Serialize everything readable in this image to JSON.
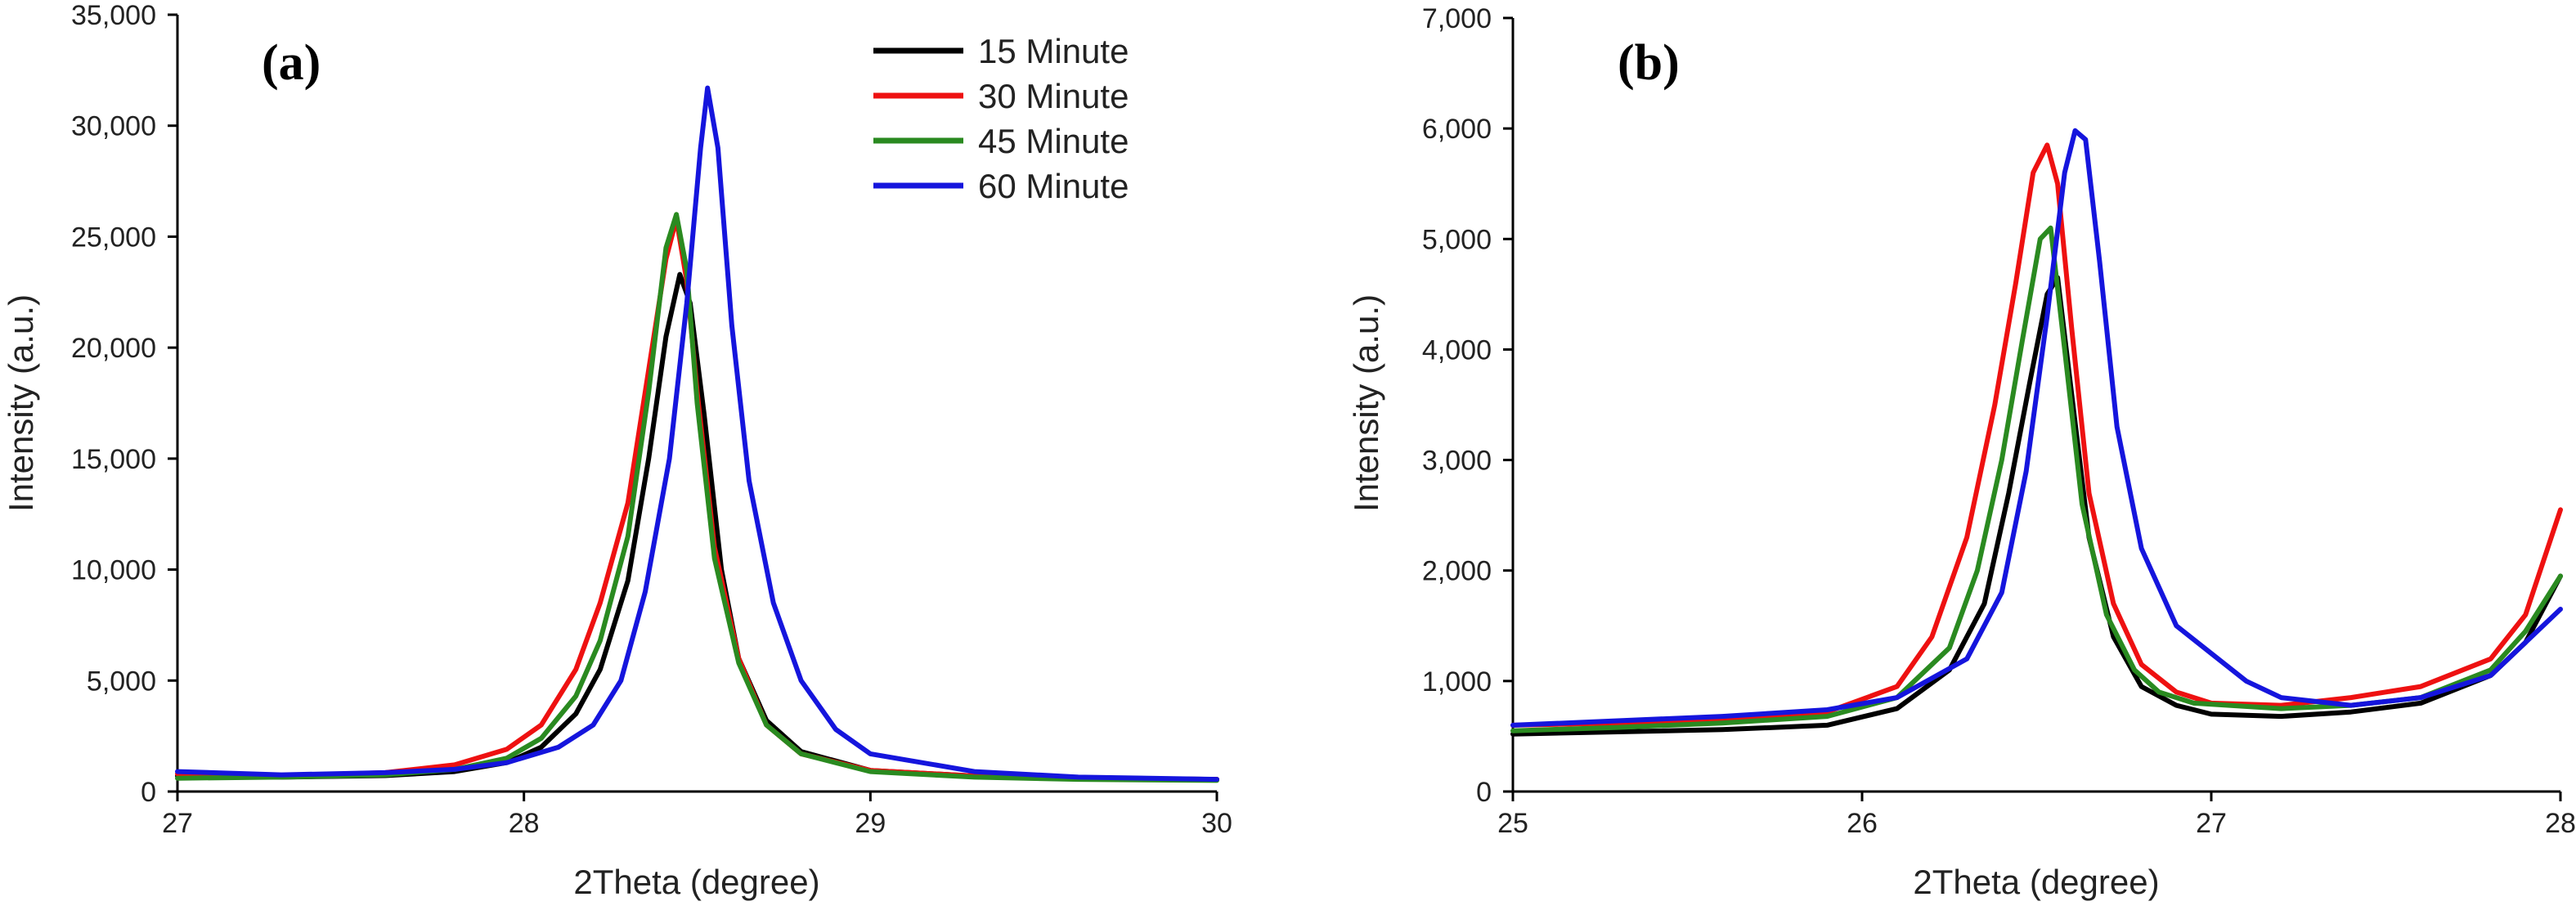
{
  "chart_data": [
    {
      "type": "line",
      "panel_label": "(a)",
      "xlabel": "2Theta (degree)",
      "ylabel": "Intensity (a.u.)",
      "xlim": [
        27,
        30
      ],
      "ylim": [
        0,
        35000
      ],
      "x_ticks": [
        27,
        28,
        29,
        30
      ],
      "x_tick_labels": [
        "27",
        "28",
        "29",
        "30"
      ],
      "y_ticks": [
        0,
        5000,
        10000,
        15000,
        20000,
        25000,
        30000,
        35000
      ],
      "y_tick_labels": [
        "0",
        "5,000",
        "10,000",
        "15,000",
        "20,000",
        "25,000",
        "30,000",
        "35,000"
      ],
      "legend_position": "top-right",
      "grid": false,
      "series": [
        {
          "name": "15 Minute",
          "color": "#000000",
          "x": [
            27.0,
            27.3,
            27.6,
            27.8,
            27.95,
            28.05,
            28.15,
            28.22,
            28.3,
            28.36,
            28.41,
            28.45,
            28.48,
            28.52,
            28.57,
            28.62,
            28.7,
            28.8,
            29.0,
            29.3,
            29.6,
            30.0
          ],
          "y": [
            700,
            650,
            720,
            900,
            1300,
            2000,
            3500,
            5500,
            9500,
            15000,
            20500,
            23300,
            22000,
            17000,
            10000,
            6000,
            3200,
            1800,
            950,
            700,
            600,
            550
          ]
        },
        {
          "name": "30 Minute",
          "color": "#ee1111",
          "x": [
            27.0,
            27.3,
            27.6,
            27.8,
            27.95,
            28.05,
            28.15,
            28.22,
            28.3,
            28.36,
            28.41,
            28.44,
            28.47,
            28.5,
            28.55,
            28.62,
            28.7,
            28.8,
            29.0,
            29.3,
            29.6,
            30.0
          ],
          "y": [
            800,
            700,
            850,
            1200,
            1900,
            3000,
            5500,
            8500,
            13000,
            19000,
            24000,
            25800,
            23000,
            18000,
            11000,
            6000,
            3000,
            1700,
            950,
            700,
            600,
            550
          ]
        },
        {
          "name": "45 Minute",
          "color": "#2a8a20",
          "x": [
            27.0,
            27.3,
            27.6,
            27.8,
            27.95,
            28.05,
            28.15,
            28.22,
            28.3,
            28.36,
            28.41,
            28.44,
            28.47,
            28.5,
            28.55,
            28.62,
            28.7,
            28.8,
            29.0,
            29.3,
            29.6,
            30.0
          ],
          "y": [
            600,
            650,
            750,
            1000,
            1500,
            2400,
            4300,
            6800,
            11500,
            18000,
            24500,
            26000,
            23500,
            17500,
            10500,
            5800,
            3000,
            1700,
            900,
            650,
            550,
            500
          ]
        },
        {
          "name": "60 Minute",
          "color": "#1515dd",
          "x": [
            27.0,
            27.3,
            27.6,
            27.8,
            27.95,
            28.1,
            28.2,
            28.28,
            28.35,
            28.42,
            28.47,
            28.51,
            28.53,
            28.56,
            28.6,
            28.65,
            28.72,
            28.8,
            28.9,
            29.0,
            29.3,
            29.6,
            30.0
          ],
          "y": [
            900,
            750,
            850,
            1000,
            1300,
            2000,
            3000,
            5000,
            9000,
            15000,
            22000,
            29000,
            31700,
            29000,
            21000,
            14000,
            8500,
            5000,
            2800,
            1700,
            900,
            650,
            550
          ]
        }
      ]
    },
    {
      "type": "line",
      "panel_label": "(b)",
      "xlabel": "2Theta (degree)",
      "ylabel": "Intensity (a.u.)",
      "xlim": [
        25,
        28
      ],
      "ylim": [
        0,
        7000
      ],
      "x_ticks": [
        25,
        26,
        27,
        28
      ],
      "x_tick_labels": [
        "25",
        "26",
        "27",
        "28"
      ],
      "y_ticks": [
        0,
        1000,
        2000,
        3000,
        4000,
        5000,
        6000,
        7000
      ],
      "y_tick_labels": [
        "0",
        "1,000",
        "2,000",
        "3,000",
        "4,000",
        "5,000",
        "6,000",
        "7,000"
      ],
      "grid": false,
      "series": [
        {
          "name": "15 Minute",
          "color": "#000000",
          "x": [
            25.0,
            25.3,
            25.6,
            25.9,
            26.1,
            26.25,
            26.35,
            26.42,
            26.48,
            26.53,
            26.56,
            26.6,
            26.65,
            26.72,
            26.8,
            26.9,
            27.0,
            27.2,
            27.4,
            27.6,
            27.8,
            27.9,
            28.0
          ],
          "y": [
            520,
            540,
            560,
            600,
            750,
            1100,
            1700,
            2700,
            3700,
            4500,
            4650,
            3600,
            2300,
            1400,
            950,
            780,
            700,
            680,
            720,
            800,
            1050,
            1350,
            1950
          ]
        },
        {
          "name": "30 Minute",
          "color": "#ee1111",
          "x": [
            25.0,
            25.3,
            25.6,
            25.9,
            26.1,
            26.2,
            26.3,
            26.38,
            26.44,
            26.49,
            26.53,
            26.56,
            26.6,
            26.65,
            26.72,
            26.8,
            26.9,
            27.0,
            27.2,
            27.4,
            27.6,
            27.8,
            27.9,
            28.0
          ],
          "y": [
            600,
            620,
            660,
            720,
            950,
            1400,
            2300,
            3500,
            4600,
            5600,
            5850,
            5500,
            4200,
            2700,
            1700,
            1150,
            900,
            800,
            780,
            850,
            950,
            1200,
            1600,
            2550
          ]
        },
        {
          "name": "45 Minute",
          "color": "#2a8a20",
          "x": [
            25.0,
            25.3,
            25.6,
            25.9,
            26.1,
            26.25,
            26.33,
            26.4,
            26.46,
            26.51,
            26.54,
            26.58,
            26.63,
            26.7,
            26.78,
            26.85,
            26.95,
            27.2,
            27.4,
            27.6,
            27.8,
            27.9,
            28.0
          ],
          "y": [
            550,
            580,
            620,
            680,
            850,
            1300,
            2000,
            3000,
            4100,
            5000,
            5100,
            4000,
            2600,
            1600,
            1100,
            900,
            800,
            750,
            780,
            850,
            1100,
            1450,
            1950
          ]
        },
        {
          "name": "60 Minute",
          "color": "#1515dd",
          "x": [
            25.0,
            25.3,
            25.6,
            25.9,
            26.1,
            26.3,
            26.4,
            26.47,
            26.53,
            26.58,
            26.61,
            26.64,
            26.68,
            26.73,
            26.8,
            26.9,
            27.0,
            27.1,
            27.2,
            27.4,
            27.6,
            27.8,
            27.9,
            28.0
          ],
          "y": [
            600,
            640,
            680,
            740,
            850,
            1200,
            1800,
            2900,
            4300,
            5600,
            5980,
            5900,
            4800,
            3300,
            2200,
            1500,
            1250,
            1000,
            850,
            780,
            850,
            1050,
            1350,
            1650
          ]
        }
      ]
    }
  ]
}
